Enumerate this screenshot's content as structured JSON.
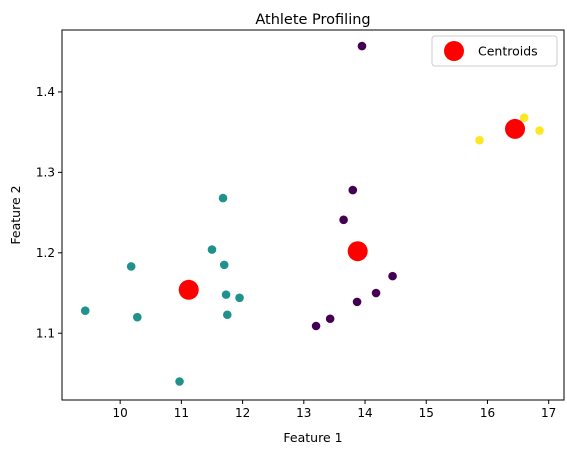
{
  "chart_data": {
    "type": "scatter",
    "title": "Athlete Profiling",
    "xlabel": "Feature 1",
    "ylabel": "Feature 2",
    "xlim": [
      9.05,
      17.25
    ],
    "ylim": [
      1.017,
      1.477
    ],
    "xticks": [
      10,
      11,
      12,
      13,
      14,
      15,
      16,
      17
    ],
    "yticks": [
      1.1,
      1.2,
      1.3,
      1.4
    ],
    "xtick_labels": [
      "10",
      "11",
      "12",
      "13",
      "14",
      "15",
      "16",
      "17"
    ],
    "ytick_labels": [
      "1.1",
      "1.2",
      "1.3",
      "1.4"
    ],
    "grid": false,
    "legend": {
      "position": "top-right",
      "entries": [
        "Centroids"
      ]
    },
    "clusters": [
      {
        "color": "#440154",
        "points": [
          [
            13.95,
            1.457
          ],
          [
            13.8,
            1.278
          ],
          [
            13.65,
            1.241
          ],
          [
            14.45,
            1.171
          ],
          [
            14.18,
            1.15
          ],
          [
            13.87,
            1.139
          ],
          [
            13.43,
            1.118
          ],
          [
            13.2,
            1.109
          ]
        ]
      },
      {
        "color": "#21918c",
        "points": [
          [
            11.68,
            1.268
          ],
          [
            11.5,
            1.204
          ],
          [
            10.18,
            1.183
          ],
          [
            11.7,
            1.185
          ],
          [
            9.43,
            1.128
          ],
          [
            10.28,
            1.12
          ],
          [
            11.73,
            1.148
          ],
          [
            11.95,
            1.144
          ],
          [
            11.75,
            1.123
          ],
          [
            10.97,
            1.04
          ]
        ]
      },
      {
        "color": "#fde725",
        "points": [
          [
            16.6,
            1.368
          ],
          [
            16.85,
            1.352
          ],
          [
            15.87,
            1.34
          ]
        ]
      }
    ],
    "centroids": {
      "name": "Centroids",
      "color": "#ff0000",
      "points": [
        [
          11.12,
          1.154
        ],
        [
          13.88,
          1.202
        ],
        [
          16.45,
          1.354
        ]
      ]
    }
  }
}
